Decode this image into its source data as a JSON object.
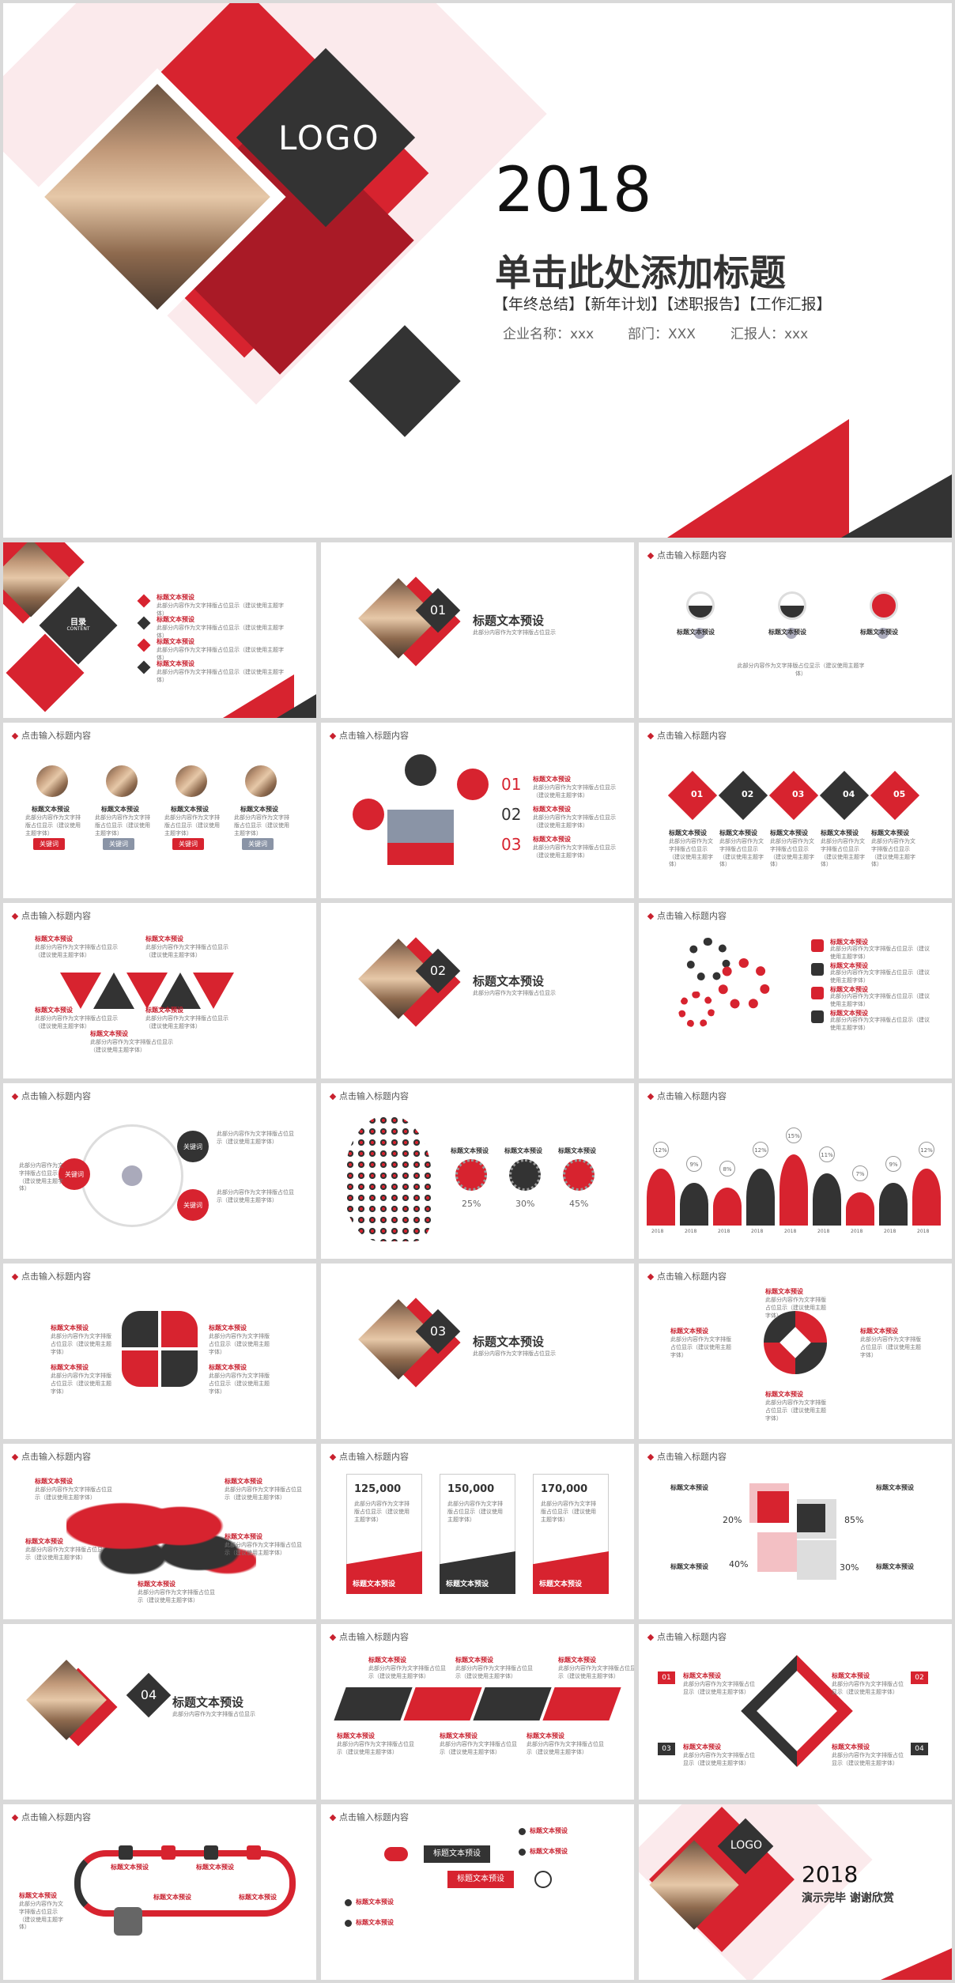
{
  "cover": {
    "logo": "LOGO",
    "year": "2018",
    "title": "单击此处添加标题",
    "tags": "【年终总结】【新年计划】【述职报告】【工作汇报】",
    "company": "企业名称：xxx",
    "dept": "部门：XXX",
    "reporter": "汇报人：xxx"
  },
  "common": {
    "header": "点击输入标题内容",
    "item_title": "标题文本预设",
    "keyword": "关键词",
    "body": "此部分内容作为文字排版占位显示（建议使用主题字体）"
  },
  "toc": {
    "title": "目录",
    "subtitle": "CONTENT"
  },
  "sections": [
    {
      "num": "01",
      "title": "标题文本预设",
      "sub": "此部分内容作为文字排版占位显示"
    },
    {
      "num": "02",
      "title": "标题文本预设",
      "sub": "此部分内容作为文字排版占位显示"
    },
    {
      "num": "03",
      "title": "标题文本预设",
      "sub": "此部分内容作为文字排版占位显示"
    },
    {
      "num": "04",
      "title": "标题文本预设",
      "sub": "此部分内容作为文字排版占位显示"
    }
  ],
  "steps5": [
    "01",
    "02",
    "03",
    "04",
    "05"
  ],
  "nums3": [
    "01",
    "02",
    "03"
  ],
  "percent3": [
    "25%",
    "30%",
    "45%"
  ],
  "peaks": {
    "labels": [
      "12%",
      "9%",
      "8%",
      "12%",
      "15%",
      "11%",
      "7%",
      "9%",
      "12%"
    ],
    "values": [
      12,
      9,
      8,
      12,
      15,
      11,
      7,
      9,
      12
    ],
    "year": "2018"
  },
  "cards": [
    {
      "value": "125,000",
      "label": "标题文本预设"
    },
    {
      "value": "150,000",
      "label": "标题文本预设"
    },
    {
      "value": "170,000",
      "label": "标题文本预设"
    }
  ],
  "quad": [
    "20%",
    "85%",
    "40%",
    "30%"
  ],
  "end": {
    "logo": "LOGO",
    "year": "2018",
    "thanks": "演示完毕 谢谢欣赏"
  }
}
